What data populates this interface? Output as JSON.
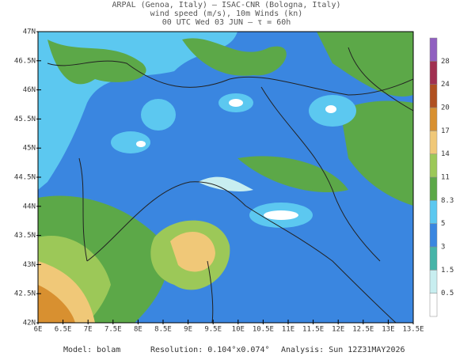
{
  "header": {
    "lines": [
      "ARPAL (Genoa, Italy)  —  ISAC-CNR (Bologna, Italy)",
      "wind speed (m/s), 10m Winds (kn)",
      "00 UTC Wed 03 JUN  —  τ = 60h"
    ]
  },
  "map": {
    "y_labels": [
      "47N",
      "46.5N",
      "46N",
      "45.5N",
      "45N",
      "44.5N",
      "44N",
      "43.5N",
      "43N",
      "42.5N",
      "42N"
    ],
    "x_labels": [
      "6E",
      "6.5E",
      "7E",
      "7.5E",
      "8E",
      "8.5E",
      "9E",
      "9.5E",
      "10E",
      "10.5E",
      "11E",
      "11.5E",
      "12E",
      "12.5E",
      "13E",
      "13.5E"
    ]
  },
  "colorbar": {
    "labels": [
      "0.5",
      "1.5",
      "3",
      "5",
      "8.3",
      "11",
      "14",
      "17",
      "20",
      "24",
      "28"
    ],
    "colors": [
      "#ffffff",
      "#c8eef0",
      "#46b4a8",
      "#3a86e0",
      "#5cc8f0",
      "#5ca848",
      "#9cc858",
      "#f0c878",
      "#d89030",
      "#b05020",
      "#a03050",
      "#9060c0"
    ]
  },
  "footer": {
    "model": "Model: bolam",
    "resolution": "Resolution: 0.104°x0.074°",
    "analysis": "Analysis: Sun 12Z31MAY2026"
  }
}
